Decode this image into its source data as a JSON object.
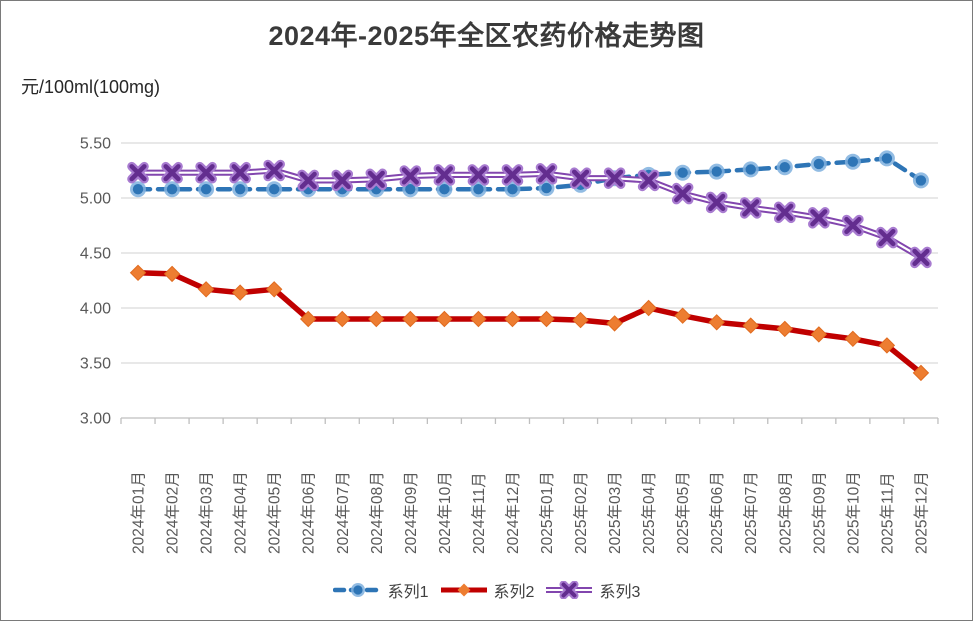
{
  "title": "2024年-2025年全区农药价格走势图",
  "unit_label": "元/100ml(100mg)",
  "chart_data": {
    "type": "line",
    "title": "2024年-2025年全区农药价格走势图",
    "ylabel": "元/100ml(100mg)",
    "ylim": [
      3.0,
      5.5
    ],
    "ytick_labels": [
      "5.50",
      "5.00",
      "4.50",
      "4.00",
      "3.50",
      "3.00"
    ],
    "grid": true,
    "legend_position": "bottom",
    "categories": [
      "2024年01月",
      "2024年02月",
      "2024年03月",
      "2024年04月",
      "2024年05月",
      "2024年06月",
      "2024年07月",
      "2024年08月",
      "2024年09月",
      "2024年10月",
      "2024年11月",
      "2024年12月",
      "2025年01月",
      "2025年02月",
      "2025年03月",
      "2025年04月",
      "2025年05月",
      "2025年06月",
      "2025年07月",
      "2025年08月",
      "2025年09月",
      "2025年10月",
      "2025年11月",
      "2025年12月"
    ],
    "series": [
      {
        "name": "系列1",
        "marker": "circle",
        "line_style": "dashed",
        "color": "#2E75B6",
        "marker_halo": "#7FB0DE",
        "values": [
          5.08,
          5.08,
          5.08,
          5.08,
          5.08,
          5.08,
          5.08,
          5.08,
          5.08,
          5.08,
          5.08,
          5.08,
          5.09,
          5.12,
          5.18,
          5.21,
          5.23,
          5.24,
          5.26,
          5.28,
          5.31,
          5.33,
          5.36,
          5.16
        ]
      },
      {
        "name": "系列2",
        "marker": "diamond",
        "line_style": "solid",
        "color": "#C00000",
        "marker_color": "#ED7D31",
        "values": [
          4.32,
          4.31,
          4.17,
          4.14,
          4.17,
          3.9,
          3.9,
          3.9,
          3.9,
          3.9,
          3.9,
          3.9,
          3.9,
          3.89,
          3.86,
          4.0,
          3.93,
          3.87,
          3.84,
          3.81,
          3.76,
          3.72,
          3.66,
          3.41
        ]
      },
      {
        "name": "系列3",
        "marker": "x",
        "line_style": "solid-outlined",
        "color": "#8246AE",
        "marker_color": "#632D8F",
        "marker_halo": "#A87BD0",
        "values": [
          5.23,
          5.23,
          5.23,
          5.23,
          5.25,
          5.16,
          5.16,
          5.17,
          5.2,
          5.21,
          5.21,
          5.21,
          5.22,
          5.18,
          5.18,
          5.16,
          5.04,
          4.96,
          4.91,
          4.87,
          4.82,
          4.75,
          4.64,
          4.46
        ]
      }
    ],
    "axis_color": "#BFBFBF",
    "gridline_color": "#D9D9D9",
    "tick_label_color": "#595959"
  }
}
